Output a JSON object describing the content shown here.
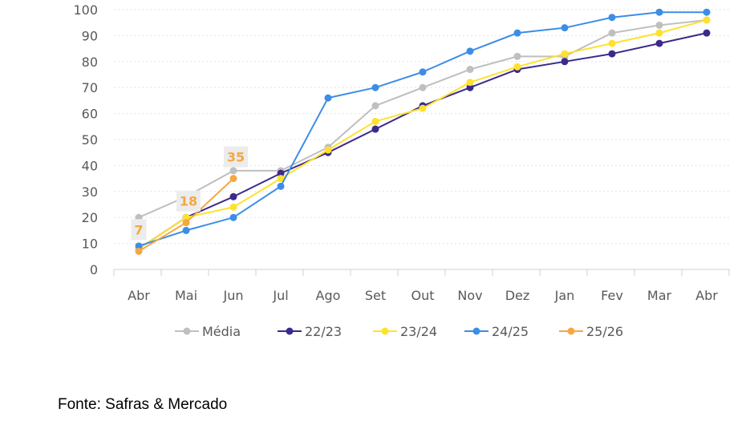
{
  "chart_data": {
    "type": "line",
    "categories": [
      "Abr",
      "Mai",
      "Jun",
      "Jul",
      "Ago",
      "Set",
      "Out",
      "Nov",
      "Dez",
      "Jan",
      "Fev",
      "Mar",
      "Abr"
    ],
    "ylim": [
      0,
      100
    ],
    "yticks": [
      0,
      10,
      20,
      30,
      40,
      50,
      60,
      70,
      80,
      90,
      100
    ],
    "grid": "horizontal dotted",
    "legend_position": "bottom",
    "series": [
      {
        "name": "Média",
        "color": "#bfbfbf",
        "values": [
          20,
          28,
          38,
          38,
          47,
          63,
          70,
          77,
          82,
          82,
          91,
          94,
          96
        ]
      },
      {
        "name": "22/23",
        "color": "#3b2a8c",
        "values": [
          8,
          20,
          28,
          37,
          45,
          54,
          63,
          70,
          77,
          80,
          83,
          87,
          91
        ]
      },
      {
        "name": "23/24",
        "color": "#ffe12e",
        "values": [
          8,
          20,
          24,
          35,
          46,
          57,
          62,
          72,
          78,
          83,
          87,
          91,
          96
        ]
      },
      {
        "name": "24/25",
        "color": "#3d8de6",
        "values": [
          9,
          15,
          20,
          32,
          66,
          70,
          76,
          84,
          91,
          93,
          97,
          99,
          99
        ]
      },
      {
        "name": "25/26",
        "color": "#f5a742",
        "values": [
          7,
          18,
          35,
          null,
          null,
          null,
          null,
          null,
          null,
          null,
          null,
          null,
          null
        ]
      }
    ],
    "data_labels": [
      {
        "series": "25/26",
        "index": 0,
        "text": "7"
      },
      {
        "series": "25/26",
        "index": 1,
        "text": "18"
      },
      {
        "series": "25/26",
        "index": 2,
        "text": "35"
      }
    ]
  },
  "source": "Fonte: Safras & Mercado"
}
